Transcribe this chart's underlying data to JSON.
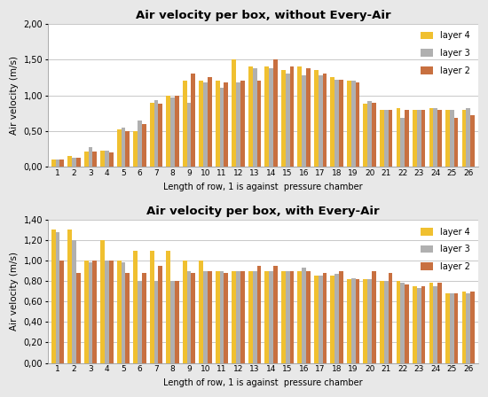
{
  "title1": "Air velocity per box, without Every-Air",
  "title2": "Air velocity per box, with Every-Air",
  "xlabel": "Length of row, 1 is against  pressure chamber",
  "ylabel": "Air velocity (m/s)",
  "categories": [
    1,
    2,
    3,
    4,
    5,
    6,
    7,
    8,
    9,
    10,
    11,
    12,
    13,
    14,
    15,
    16,
    17,
    18,
    19,
    20,
    21,
    22,
    23,
    24,
    25,
    26
  ],
  "chart1": {
    "layer4": [
      0.1,
      0.15,
      0.22,
      0.23,
      0.52,
      0.5,
      0.9,
      1.0,
      1.2,
      1.2,
      1.2,
      1.5,
      1.4,
      1.4,
      1.35,
      1.4,
      1.35,
      1.25,
      1.2,
      0.88,
      0.8,
      0.82,
      0.8,
      0.82,
      0.8,
      0.8
    ],
    "layer3": [
      0.1,
      0.13,
      0.28,
      0.23,
      0.55,
      0.65,
      0.93,
      0.97,
      0.9,
      1.18,
      1.1,
      1.18,
      1.38,
      1.38,
      1.3,
      1.28,
      1.28,
      1.22,
      1.2,
      0.92,
      0.8,
      0.69,
      0.8,
      0.82,
      0.8,
      0.82
    ],
    "layer2": [
      0.1,
      0.13,
      0.22,
      0.2,
      0.5,
      0.6,
      0.88,
      1.0,
      1.3,
      1.25,
      1.18,
      1.2,
      1.2,
      1.5,
      1.4,
      1.38,
      1.3,
      1.22,
      1.18,
      0.9,
      0.8,
      0.8,
      0.8,
      0.8,
      0.68,
      0.72
    ]
  },
  "chart2": {
    "layer4": [
      1.3,
      1.3,
      1.0,
      1.2,
      1.0,
      1.1,
      1.1,
      1.1,
      1.0,
      1.0,
      0.9,
      0.9,
      0.9,
      0.9,
      0.9,
      0.9,
      0.85,
      0.85,
      0.82,
      0.82,
      0.8,
      0.8,
      0.75,
      0.78,
      0.68,
      0.7
    ],
    "layer3": [
      1.28,
      1.2,
      0.98,
      1.0,
      0.98,
      0.8,
      0.8,
      0.8,
      0.9,
      0.9,
      0.9,
      0.9,
      0.9,
      0.9,
      0.9,
      0.93,
      0.85,
      0.87,
      0.83,
      0.82,
      0.8,
      0.78,
      0.73,
      0.75,
      0.68,
      0.68
    ],
    "layer2": [
      1.0,
      0.88,
      1.0,
      1.0,
      0.88,
      0.88,
      0.95,
      0.8,
      0.88,
      0.9,
      0.88,
      0.9,
      0.95,
      0.95,
      0.9,
      0.9,
      0.88,
      0.9,
      0.82,
      0.9,
      0.88,
      0.77,
      0.75,
      0.78,
      0.68,
      0.7
    ]
  },
  "colors": {
    "layer4": "#F0C030",
    "layer3": "#B0B0B0",
    "layer2": "#C87040"
  },
  "ylim1": [
    0,
    2.0
  ],
  "ylim2": [
    0,
    1.4
  ],
  "yticks1": [
    0.0,
    0.5,
    1.0,
    1.5,
    2.0
  ],
  "yticks2": [
    0.0,
    0.2,
    0.4,
    0.6,
    0.8,
    1.0,
    1.2,
    1.4
  ],
  "bg_color": "#E8E8E8",
  "plot_bg": "#FFFFFF",
  "bar_width": 0.26
}
